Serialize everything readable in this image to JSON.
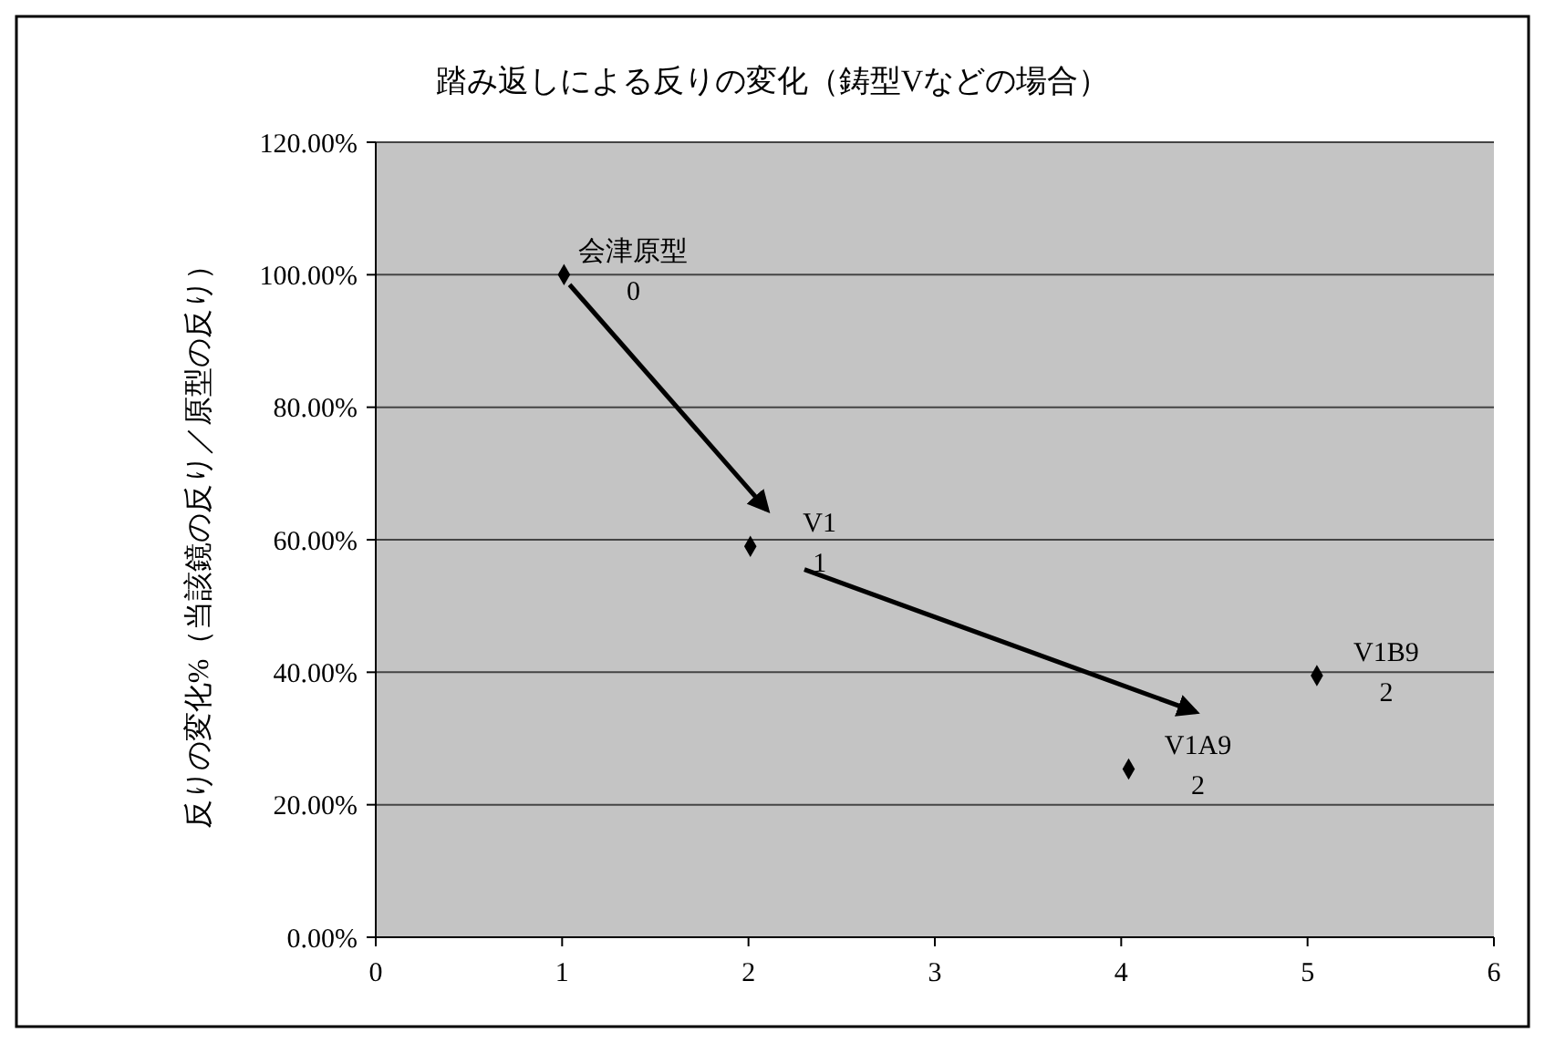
{
  "chart_data": {
    "type": "scatter",
    "title": "踏み返しによる反りの変化（鋳型Vなどの場合）",
    "ylabel": "反りの変化%（当該鏡の反り／原型の反り）",
    "x": [
      1.01,
      2.01,
      4.04,
      5.05
    ],
    "series": [
      {
        "color": "#000000",
        "values": [
          100,
          59,
          25.4,
          39.5
        ]
      }
    ],
    "xlim": [
      0,
      6
    ],
    "xticks": [
      0,
      1,
      2,
      3,
      4,
      5,
      6
    ],
    "ylim": [
      0,
      120
    ],
    "yticks": [
      {
        "value": 0,
        "label": "0.00%"
      },
      {
        "value": 20,
        "label": "20.00%"
      },
      {
        "value": 40,
        "label": "40.00%"
      },
      {
        "value": 60,
        "label": "60.00%"
      },
      {
        "value": 80,
        "label": "80.00%"
      },
      {
        "value": 100,
        "label": "100.00%"
      },
      {
        "value": 120,
        "label": "120.00%"
      }
    ],
    "grid": "y",
    "marker": "diamond",
    "annotations": [
      {
        "text": "会津原型\n0",
        "x": 1.01,
        "y": 100
      },
      {
        "text": "V1\n1",
        "x": 2.01,
        "y": 59
      },
      {
        "text": "V1A9\n2",
        "x": 4.04,
        "y": 25.4
      },
      {
        "text": "V1B9\n2",
        "x": 5.05,
        "y": 39.5
      }
    ]
  }
}
